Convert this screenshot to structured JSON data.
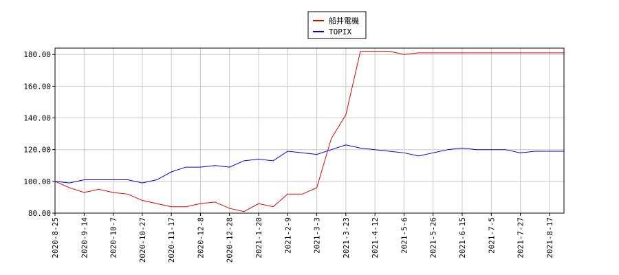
{
  "chart_data": {
    "type": "line",
    "x": [
      "2020-8-25",
      "2020-9-3",
      "2020-9-14",
      "2020-9-23",
      "2020-10-7",
      "2020-10-16",
      "2020-10-27",
      "2020-11-5",
      "2020-11-17",
      "2020-11-26",
      "2020-12-8",
      "2020-12-17",
      "2020-12-28",
      "2021-1-8",
      "2021-1-20",
      "2021-1-29",
      "2021-2-9",
      "2021-2-19",
      "2021-3-3",
      "2021-3-12",
      "2021-3-23",
      "2021-4-1",
      "2021-4-12",
      "2021-4-21",
      "2021-5-6",
      "2021-5-17",
      "2021-5-26",
      "2021-6-4",
      "2021-6-15",
      "2021-6-24",
      "2021-7-5",
      "2021-7-14",
      "2021-7-27",
      "2021-8-5",
      "2021-8-17",
      "2021-8-26"
    ],
    "series": [
      {
        "name": "船井電機",
        "color": "#dd0000",
        "values": [
          100,
          96,
          93,
          95,
          93,
          92,
          88,
          86,
          84,
          84,
          86,
          87,
          83,
          81,
          86,
          84,
          92,
          92,
          96,
          127,
          142,
          182,
          182,
          182,
          180,
          181,
          181,
          181,
          181,
          181,
          181,
          181,
          181,
          181,
          181,
          181
        ]
      },
      {
        "name": "TOPIX",
        "color": "#0000dd",
        "values": [
          100,
          99,
          101,
          101,
          101,
          101,
          99,
          101,
          106,
          109,
          109,
          110,
          109,
          113,
          114,
          113,
          119,
          118,
          117,
          120,
          123,
          121,
          120,
          119,
          118,
          116,
          118,
          120,
          121,
          120,
          120,
          120,
          118,
          119,
          119,
          119
        ]
      }
    ],
    "xticks": [
      "2020-8-25",
      "2020-9-14",
      "2020-10-7",
      "2020-10-27",
      "2020-11-17",
      "2020-12-8",
      "2020-12-28",
      "2021-1-20",
      "2021-2-9",
      "2021-3-3",
      "2021-3-23",
      "2021-4-12",
      "2021-5-6",
      "2021-5-26",
      "2021-6-15",
      "2021-7-5",
      "2021-7-27",
      "2021-8-17"
    ],
    "ylim": [
      80,
      184
    ],
    "yticks": [
      {
        "value": 80,
        "label": "80.00"
      },
      {
        "value": 100,
        "label": "100.00"
      },
      {
        "value": 120,
        "label": "120.00"
      },
      {
        "value": 140,
        "label": "140.00"
      },
      {
        "value": 160,
        "label": "160.00"
      },
      {
        "value": 180,
        "label": "180.00"
      }
    ],
    "grid": true
  }
}
